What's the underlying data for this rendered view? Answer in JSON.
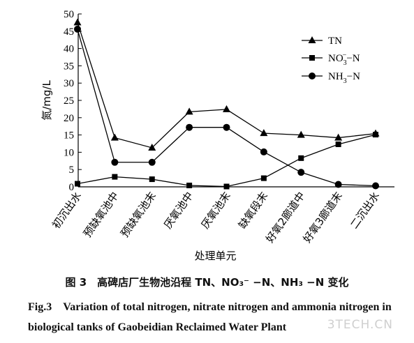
{
  "chart_data": {
    "type": "line",
    "ylabel": "氮/mg/L",
    "xlabel": "处理单元",
    "ylim": [
      0,
      50
    ],
    "yticks": [
      0,
      5,
      10,
      15,
      20,
      25,
      30,
      35,
      40,
      45,
      50
    ],
    "categories": [
      "初沉出水",
      "预缺氧池中",
      "预缺氧池末",
      "厌氧池中",
      "厌氧池末",
      "缺氧段末",
      "好氧2廊道中",
      "好氧3廊道末",
      "二沉出水"
    ],
    "legend_position": "top-right",
    "grid": false,
    "series": [
      {
        "name": "TN",
        "marker": "triangle",
        "values": [
          47.5,
          14.2,
          11.3,
          21.7,
          22.4,
          15.5,
          15.0,
          14.2,
          15.4
        ]
      },
      {
        "name": "NO3−−N",
        "legend_parts": [
          "NO",
          "3",
          "−",
          "−N"
        ],
        "marker": "square",
        "values": [
          0.9,
          2.9,
          2.2,
          0.4,
          0.1,
          2.5,
          8.3,
          12.3,
          15.1
        ]
      },
      {
        "name": "NH3−N",
        "legend_parts": [
          "NH",
          "3",
          "",
          "−N"
        ],
        "marker": "circle",
        "values": [
          45.6,
          7.1,
          7.1,
          17.2,
          17.2,
          10.1,
          4.2,
          0.7,
          0.3
        ]
      }
    ]
  },
  "caption": {
    "cn": "图 3　高碑店厂生物池沿程 TN、NO₃⁻ −N、NH₃ −N 变化",
    "en": "Fig.3　Variation of total nitrogen, nitrate nitrogen and ammonia nitrogen in biological tanks of Gaobeidian Reclaimed Water Plant"
  },
  "watermark": "3TECH.CN"
}
